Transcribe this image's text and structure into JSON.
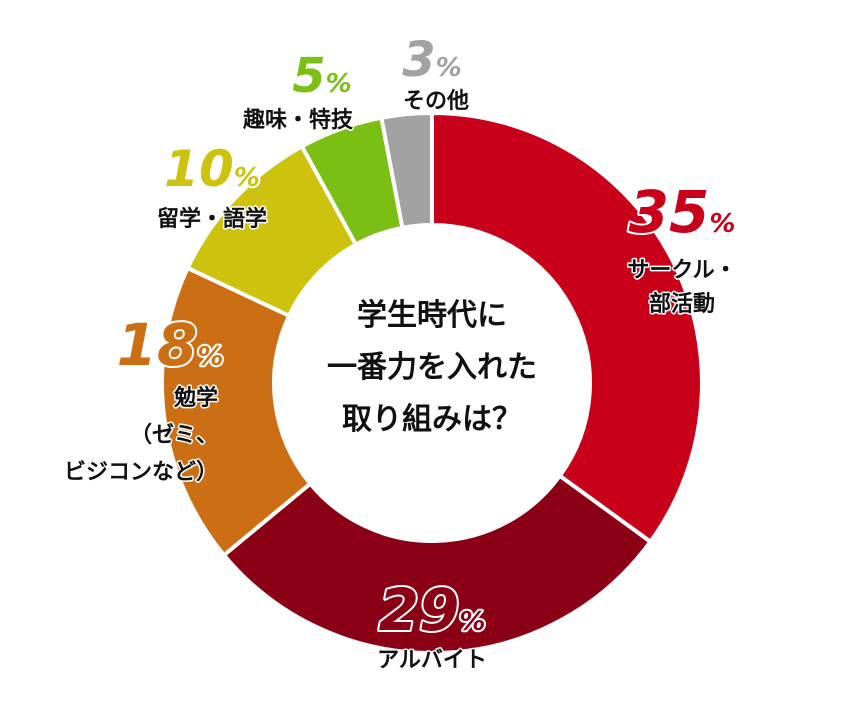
{
  "chart_data": {
    "type": "pie",
    "title_lines": [
      "学生時代に",
      "一番力を入れた",
      "取り組みは？"
    ],
    "percent_sign": "%",
    "slices": [
      {
        "label_lines": [
          "サークル・",
          "部活動"
        ],
        "value": 35,
        "color": "#c8001a",
        "label_color": "#c8001a"
      },
      {
        "label_lines": [
          "アルバイト"
        ],
        "value": 29,
        "color": "#8b0014",
        "label_color": "#8b0014"
      },
      {
        "label_lines": [
          "勉学",
          "（ゼミ、",
          "ビジコンなど）"
        ],
        "value": 18,
        "color": "#cc6f14",
        "label_color": "#cc6f14"
      },
      {
        "label_lines": [
          "留学・語学"
        ],
        "value": 10,
        "color": "#cdc20e",
        "label_color": "#cdc20e"
      },
      {
        "label_lines": [
          "趣味・特技"
        ],
        "value": 5,
        "color": "#7bbf14",
        "label_color": "#7bbf14"
      },
      {
        "label_lines": [
          "その他"
        ],
        "value": 3,
        "color": "#a2a2a2",
        "label_color": "#a2a2a2"
      }
    ]
  }
}
